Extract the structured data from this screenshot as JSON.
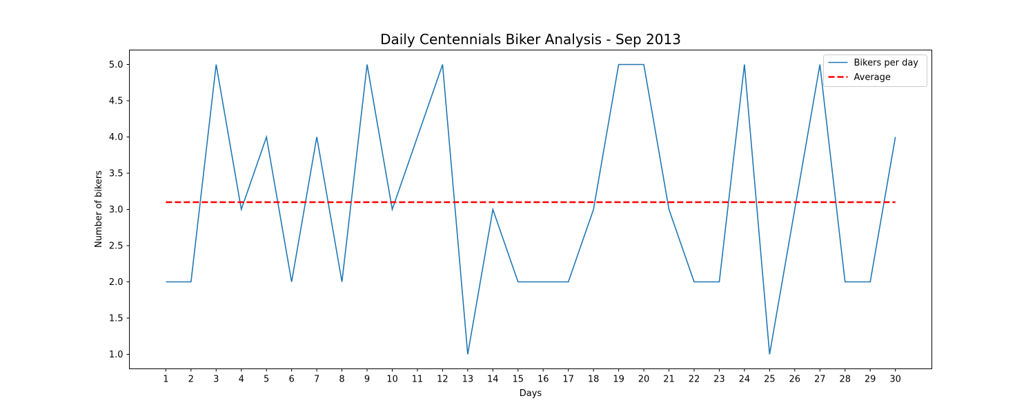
{
  "chart_data": {
    "type": "line",
    "title": "Daily Centennials Biker Analysis - Sep 2013",
    "xlabel": "Days",
    "ylabel": "Number of bikers",
    "x": [
      1,
      2,
      3,
      4,
      5,
      6,
      7,
      8,
      9,
      10,
      11,
      12,
      13,
      14,
      15,
      16,
      17,
      18,
      19,
      20,
      21,
      22,
      23,
      24,
      25,
      26,
      27,
      28,
      29,
      30
    ],
    "xticks": [
      "1",
      "2",
      "3",
      "4",
      "5",
      "6",
      "7",
      "8",
      "9",
      "10",
      "11",
      "12",
      "13",
      "14",
      "15",
      "16",
      "17",
      "18",
      "19",
      "20",
      "21",
      "22",
      "23",
      "24",
      "25",
      "26",
      "27",
      "28",
      "29",
      "30"
    ],
    "yticks": [
      "1.0",
      "1.5",
      "2.0",
      "2.5",
      "3.0",
      "3.5",
      "4.0",
      "4.5",
      "5.0"
    ],
    "ylim": [
      0.8,
      5.2
    ],
    "xlim": [
      -0.45,
      31.45
    ],
    "series": [
      {
        "name": "Bikers per day",
        "color": "#1f77b4",
        "style": "solid",
        "values": [
          2,
          2,
          5,
          3,
          4,
          2,
          4,
          2,
          5,
          3,
          4,
          5,
          1,
          3,
          2,
          2,
          2,
          3,
          5,
          5,
          3,
          2,
          2,
          5,
          1,
          3,
          5,
          2,
          2,
          4
        ]
      },
      {
        "name": "Average",
        "color": "#ff0000",
        "style": "dashed",
        "values": [
          3.1,
          3.1,
          3.1,
          3.1,
          3.1,
          3.1,
          3.1,
          3.1,
          3.1,
          3.1,
          3.1,
          3.1,
          3.1,
          3.1,
          3.1,
          3.1,
          3.1,
          3.1,
          3.1,
          3.1,
          3.1,
          3.1,
          3.1,
          3.1,
          3.1,
          3.1,
          3.1,
          3.1,
          3.1,
          3.1
        ]
      }
    ],
    "legend_position": "top-right",
    "grid": false
  }
}
